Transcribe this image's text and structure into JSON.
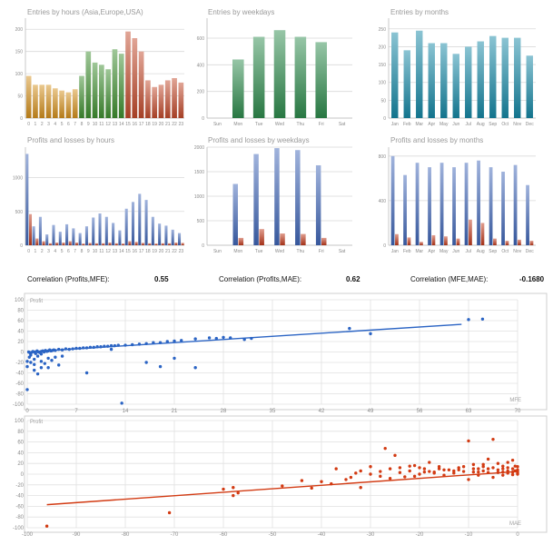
{
  "colors": {
    "hour_asia": "#d4901c",
    "hour_europe": "#3f8f30",
    "hour_usa": "#c24a2c",
    "weekday_bar": "#2f8c4e",
    "month_bar": "#1688a6",
    "profit_bar": "#4066b8",
    "loss_bar": "#c03a1c",
    "scatter_mfe": "#2b64c4",
    "scatter_mae": "#d23a12",
    "grid": "#d9d9d9",
    "axis_text": "#8a8a8a"
  },
  "correlation": {
    "profits_mfe": {
      "label": "Correlation (Profits,MFE):",
      "value": "0.55"
    },
    "profits_mae": {
      "label": "Correlation (Profits,MAE):",
      "value": "0.62"
    },
    "mfe_mae": {
      "label": "Correlation (MFE,MAE):",
      "value": "-0.1680"
    }
  },
  "chart_data": [
    {
      "id": "entries_hours",
      "type": "bar",
      "title": "Entries by hours (Asia,Europe,USA)",
      "categories": [
        "0",
        "1",
        "2",
        "3",
        "4",
        "5",
        "6",
        "7",
        "8",
        "9",
        "10",
        "11",
        "12",
        "13",
        "14",
        "15",
        "16",
        "17",
        "18",
        "19",
        "20",
        "21",
        "22",
        "23"
      ],
      "values": [
        95,
        75,
        75,
        75,
        67,
        62,
        58,
        65,
        95,
        150,
        125,
        120,
        110,
        155,
        145,
        195,
        180,
        150,
        85,
        70,
        75,
        85,
        90,
        80
      ],
      "session": [
        "asia",
        "asia",
        "asia",
        "asia",
        "asia",
        "asia",
        "asia",
        "asia",
        "europe",
        "europe",
        "europe",
        "europe",
        "europe",
        "europe",
        "europe",
        "usa",
        "usa",
        "usa",
        "usa",
        "usa",
        "usa",
        "usa",
        "usa",
        "usa"
      ],
      "ylim": [
        0,
        225
      ],
      "yticks": [
        0,
        50,
        100,
        150,
        200
      ],
      "ytick_labels": [
        "0",
        "50",
        "100",
        "150",
        "200"
      ],
      "grid": true
    },
    {
      "id": "entries_weekdays",
      "type": "bar",
      "title": "Entries by weekdays",
      "categories": [
        "Sun",
        "Mon",
        "Tue",
        "Wed",
        "Thu",
        "Fri",
        "Sat"
      ],
      "values": [
        0,
        440,
        610,
        660,
        610,
        570,
        0
      ],
      "ylim": [
        0,
        750
      ],
      "yticks": [
        0,
        200,
        400,
        600
      ],
      "ytick_labels": [
        "0",
        "200",
        "400",
        "600"
      ],
      "grid": true
    },
    {
      "id": "entries_months",
      "type": "bar",
      "title": "Entries by months",
      "categories": [
        "Jan",
        "Feb",
        "Mar",
        "Apr",
        "May",
        "Jun",
        "Jul",
        "Aug",
        "Sep",
        "Oct",
        "Nov",
        "Dec"
      ],
      "values": [
        240,
        190,
        245,
        210,
        210,
        180,
        200,
        215,
        230,
        225,
        225,
        175
      ],
      "ylim": [
        0,
        280
      ],
      "yticks": [
        0,
        50,
        100,
        150,
        200,
        250
      ],
      "ytick_labels": [
        "0",
        "50",
        "100",
        "150",
        "200",
        "250"
      ],
      "grid": true
    },
    {
      "id": "pl_hours",
      "type": "bar",
      "title": "Profits and losses by hours",
      "categories": [
        "0",
        "1",
        "2",
        "3",
        "4",
        "5",
        "6",
        "7",
        "8",
        "9",
        "10",
        "11",
        "12",
        "13",
        "14",
        "15",
        "16",
        "17",
        "18",
        "19",
        "20",
        "21",
        "22",
        "23"
      ],
      "series": [
        {
          "kind": "profit",
          "values": [
            1350,
            280,
            420,
            160,
            300,
            200,
            310,
            250,
            180,
            280,
            410,
            470,
            420,
            330,
            220,
            540,
            640,
            760,
            670,
            420,
            320,
            290,
            230,
            180
          ]
        },
        {
          "kind": "loss",
          "values": [
            460,
            100,
            60,
            30,
            40,
            40,
            60,
            40,
            25,
            35,
            30,
            30,
            40,
            30,
            25,
            60,
            50,
            35,
            30,
            25,
            30,
            30,
            40,
            35
          ]
        }
      ],
      "ylim": [
        0,
        1450
      ],
      "yticks": [
        0,
        500,
        1000
      ],
      "ytick_labels": [
        "0",
        "500",
        "1000"
      ],
      "grid": true
    },
    {
      "id": "pl_weekdays",
      "type": "bar",
      "title": "Profits and losses by weekdays",
      "categories": [
        "Sun",
        "Mon",
        "Tue",
        "Wed",
        "Thu",
        "Fri",
        "Sat"
      ],
      "series": [
        {
          "kind": "profit",
          "values": [
            0,
            1250,
            1860,
            1980,
            1940,
            1630,
            0
          ]
        },
        {
          "kind": "loss",
          "values": [
            0,
            150,
            330,
            240,
            230,
            150,
            0
          ]
        }
      ],
      "ylim": [
        0,
        2000
      ],
      "yticks": [
        0,
        500,
        1000,
        1500,
        2000
      ],
      "ytick_labels": [
        "0",
        "500",
        "1000",
        "1500",
        "2000"
      ],
      "grid": true
    },
    {
      "id": "pl_months",
      "type": "bar",
      "title": "Profits and losses by months",
      "categories": [
        "Jan",
        "Feb",
        "Mar",
        "Apr",
        "May",
        "Jun",
        "Jul",
        "Aug",
        "Sep",
        "Oct",
        "Nov",
        "Dec"
      ],
      "series": [
        {
          "kind": "profit",
          "values": [
            800,
            630,
            740,
            700,
            740,
            700,
            740,
            760,
            700,
            660,
            720,
            540
          ]
        },
        {
          "kind": "loss",
          "values": [
            100,
            70,
            30,
            90,
            80,
            60,
            230,
            200,
            60,
            40,
            50,
            40
          ]
        }
      ],
      "ylim": [
        0,
        880
      ],
      "yticks": [
        0,
        400,
        800
      ],
      "ytick_labels": [
        "0",
        "400",
        "800"
      ],
      "grid": true
    },
    {
      "id": "scatter_mfe",
      "type": "scatter",
      "ylabel": "Profit",
      "xlabel": "MFE",
      "xlim": [
        0,
        70
      ],
      "ylim": [
        -100,
        100
      ],
      "xticks": [
        0,
        7,
        14,
        21,
        28,
        35,
        42,
        49,
        56,
        63,
        70
      ],
      "yticks": [
        -100,
        -80,
        -60,
        -40,
        -20,
        0,
        20,
        40,
        60,
        80,
        100
      ],
      "grid": true,
      "trend": [
        [
          0,
          0
        ],
        [
          62,
          53
        ]
      ],
      "points": [
        [
          0,
          -72
        ],
        [
          0,
          -28
        ],
        [
          0,
          -18
        ],
        [
          0.3,
          -10
        ],
        [
          0.5,
          -20
        ],
        [
          0.5,
          -6
        ],
        [
          1,
          -35
        ],
        [
          1,
          -24
        ],
        [
          1,
          -14
        ],
        [
          1.5,
          -42
        ],
        [
          1.5,
          -8
        ],
        [
          2,
          -30
        ],
        [
          2,
          -18
        ],
        [
          2,
          -4
        ],
        [
          2.5,
          -22
        ],
        [
          3,
          -12
        ],
        [
          3,
          -30
        ],
        [
          3.5,
          -16
        ],
        [
          4,
          -10
        ],
        [
          4.5,
          -25
        ],
        [
          5,
          -8
        ],
        [
          0.2,
          0
        ],
        [
          0.4,
          -2
        ],
        [
          0.6,
          -1
        ],
        [
          0.8,
          1
        ],
        [
          1,
          0
        ],
        [
          1.2,
          -3
        ],
        [
          1.4,
          2
        ],
        [
          1.6,
          0
        ],
        [
          1.8,
          -1
        ],
        [
          2,
          1
        ],
        [
          2.2,
          2
        ],
        [
          2.4,
          0
        ],
        [
          2.6,
          3
        ],
        [
          2.8,
          1
        ],
        [
          3,
          2
        ],
        [
          3.2,
          4
        ],
        [
          3.4,
          2
        ],
        [
          3.6,
          3
        ],
        [
          3.8,
          4
        ],
        [
          4,
          3
        ],
        [
          4.5,
          5
        ],
        [
          5,
          4
        ],
        [
          5.5,
          6
        ],
        [
          6,
          5
        ],
        [
          6.5,
          6
        ],
        [
          7,
          7
        ],
        [
          7.5,
          7
        ],
        [
          8,
          8
        ],
        [
          8.5,
          8
        ],
        [
          9,
          9
        ],
        [
          9.5,
          9
        ],
        [
          10,
          10
        ],
        [
          10.5,
          10
        ],
        [
          11,
          11
        ],
        [
          11.5,
          11
        ],
        [
          12,
          12
        ],
        [
          12.5,
          12
        ],
        [
          13,
          13
        ],
        [
          14,
          13
        ],
        [
          15,
          14
        ],
        [
          16,
          15
        ],
        [
          17,
          16
        ],
        [
          18,
          18
        ],
        [
          19,
          18
        ],
        [
          20,
          20
        ],
        [
          21,
          21
        ],
        [
          22,
          22
        ],
        [
          24,
          25
        ],
        [
          26,
          27
        ],
        [
          27,
          26
        ],
        [
          28,
          28
        ],
        [
          29,
          27
        ],
        [
          31,
          24
        ],
        [
          32,
          26
        ],
        [
          8.5,
          -40
        ],
        [
          12,
          5
        ],
        [
          13.5,
          -98
        ],
        [
          17,
          -20
        ],
        [
          19,
          -28
        ],
        [
          21,
          -12
        ],
        [
          24,
          -30
        ],
        [
          46,
          45
        ],
        [
          49,
          35
        ],
        [
          63,
          62
        ],
        [
          65,
          63
        ]
      ]
    },
    {
      "id": "scatter_mae",
      "type": "scatter",
      "ylabel": "Profit",
      "xlabel": "MAE",
      "xlim": [
        -100,
        0
      ],
      "ylim": [
        -100,
        100
      ],
      "xticks": [
        -100,
        -90,
        -80,
        -70,
        -60,
        -50,
        -40,
        -30,
        -20,
        -10,
        0
      ],
      "yticks": [
        -100,
        -80,
        -60,
        -40,
        -20,
        0,
        20,
        40,
        60,
        80,
        100
      ],
      "grid": true,
      "trend": [
        [
          -96,
          -57
        ],
        [
          0,
          5
        ]
      ],
      "points": [
        [
          -96,
          -97
        ],
        [
          -71,
          -72
        ],
        [
          -58,
          -25
        ],
        [
          -57,
          -35
        ],
        [
          -48,
          -22
        ],
        [
          -42,
          -26
        ],
        [
          -40,
          -14
        ],
        [
          -38,
          -18
        ],
        [
          -37,
          10
        ],
        [
          -35,
          -10
        ],
        [
          -33,
          2
        ],
        [
          -32,
          -25
        ],
        [
          -30,
          0
        ],
        [
          -28,
          5
        ],
        [
          -27,
          48
        ],
        [
          -26,
          -8
        ],
        [
          -25,
          35
        ],
        [
          -24,
          12
        ],
        [
          -23,
          -5
        ],
        [
          -22,
          6
        ],
        [
          -21,
          16
        ],
        [
          -20,
          0
        ],
        [
          -19,
          10
        ],
        [
          -18,
          22
        ],
        [
          -17,
          4
        ],
        [
          -16,
          10
        ],
        [
          -15,
          -2
        ],
        [
          -14,
          8
        ],
        [
          -13,
          2
        ],
        [
          -12,
          12
        ],
        [
          -11,
          5
        ],
        [
          -10,
          -10
        ],
        [
          -10,
          62
        ],
        [
          -9,
          18
        ],
        [
          -9,
          4
        ],
        [
          -8,
          10
        ],
        [
          -8,
          -2
        ],
        [
          -7,
          14
        ],
        [
          -7,
          6
        ],
        [
          -6,
          28
        ],
        [
          -6,
          3
        ],
        [
          -5,
          12
        ],
        [
          -5,
          -6
        ],
        [
          -5,
          65
        ],
        [
          -4,
          8
        ],
        [
          -4,
          20
        ],
        [
          -3,
          4
        ],
        [
          -3,
          15
        ],
        [
          -2,
          6
        ],
        [
          -2,
          22
        ],
        [
          -2,
          12
        ],
        [
          -1,
          4
        ],
        [
          -1,
          10
        ],
        [
          -1,
          26
        ],
        [
          -0.5,
          6
        ],
        [
          -0.5,
          15
        ],
        [
          0,
          2
        ],
        [
          0,
          8
        ],
        [
          0,
          14
        ],
        [
          0,
          5
        ],
        [
          -3,
          10
        ],
        [
          -4,
          3
        ],
        [
          -6,
          10
        ],
        [
          -7,
          18
        ],
        [
          -9,
          10
        ],
        [
          -11,
          14
        ],
        [
          -13,
          6
        ],
        [
          -15,
          8
        ],
        [
          -17,
          2
        ],
        [
          -19,
          4
        ],
        [
          -20,
          12
        ],
        [
          -21,
          -4
        ],
        [
          -22,
          15
        ],
        [
          -24,
          3
        ],
        [
          -26,
          10
        ],
        [
          -28,
          -4
        ],
        [
          -30,
          14
        ],
        [
          -32,
          6
        ],
        [
          -34,
          -6
        ],
        [
          -44,
          -12
        ],
        [
          -58,
          -40
        ],
        [
          -60,
          -28
        ],
        [
          -2,
          2
        ],
        [
          -1,
          -1
        ],
        [
          0,
          0
        ],
        [
          -3,
          -2
        ],
        [
          -8,
          4
        ],
        [
          -12,
          8
        ],
        [
          -16,
          14
        ],
        [
          -18,
          5
        ]
      ]
    }
  ]
}
